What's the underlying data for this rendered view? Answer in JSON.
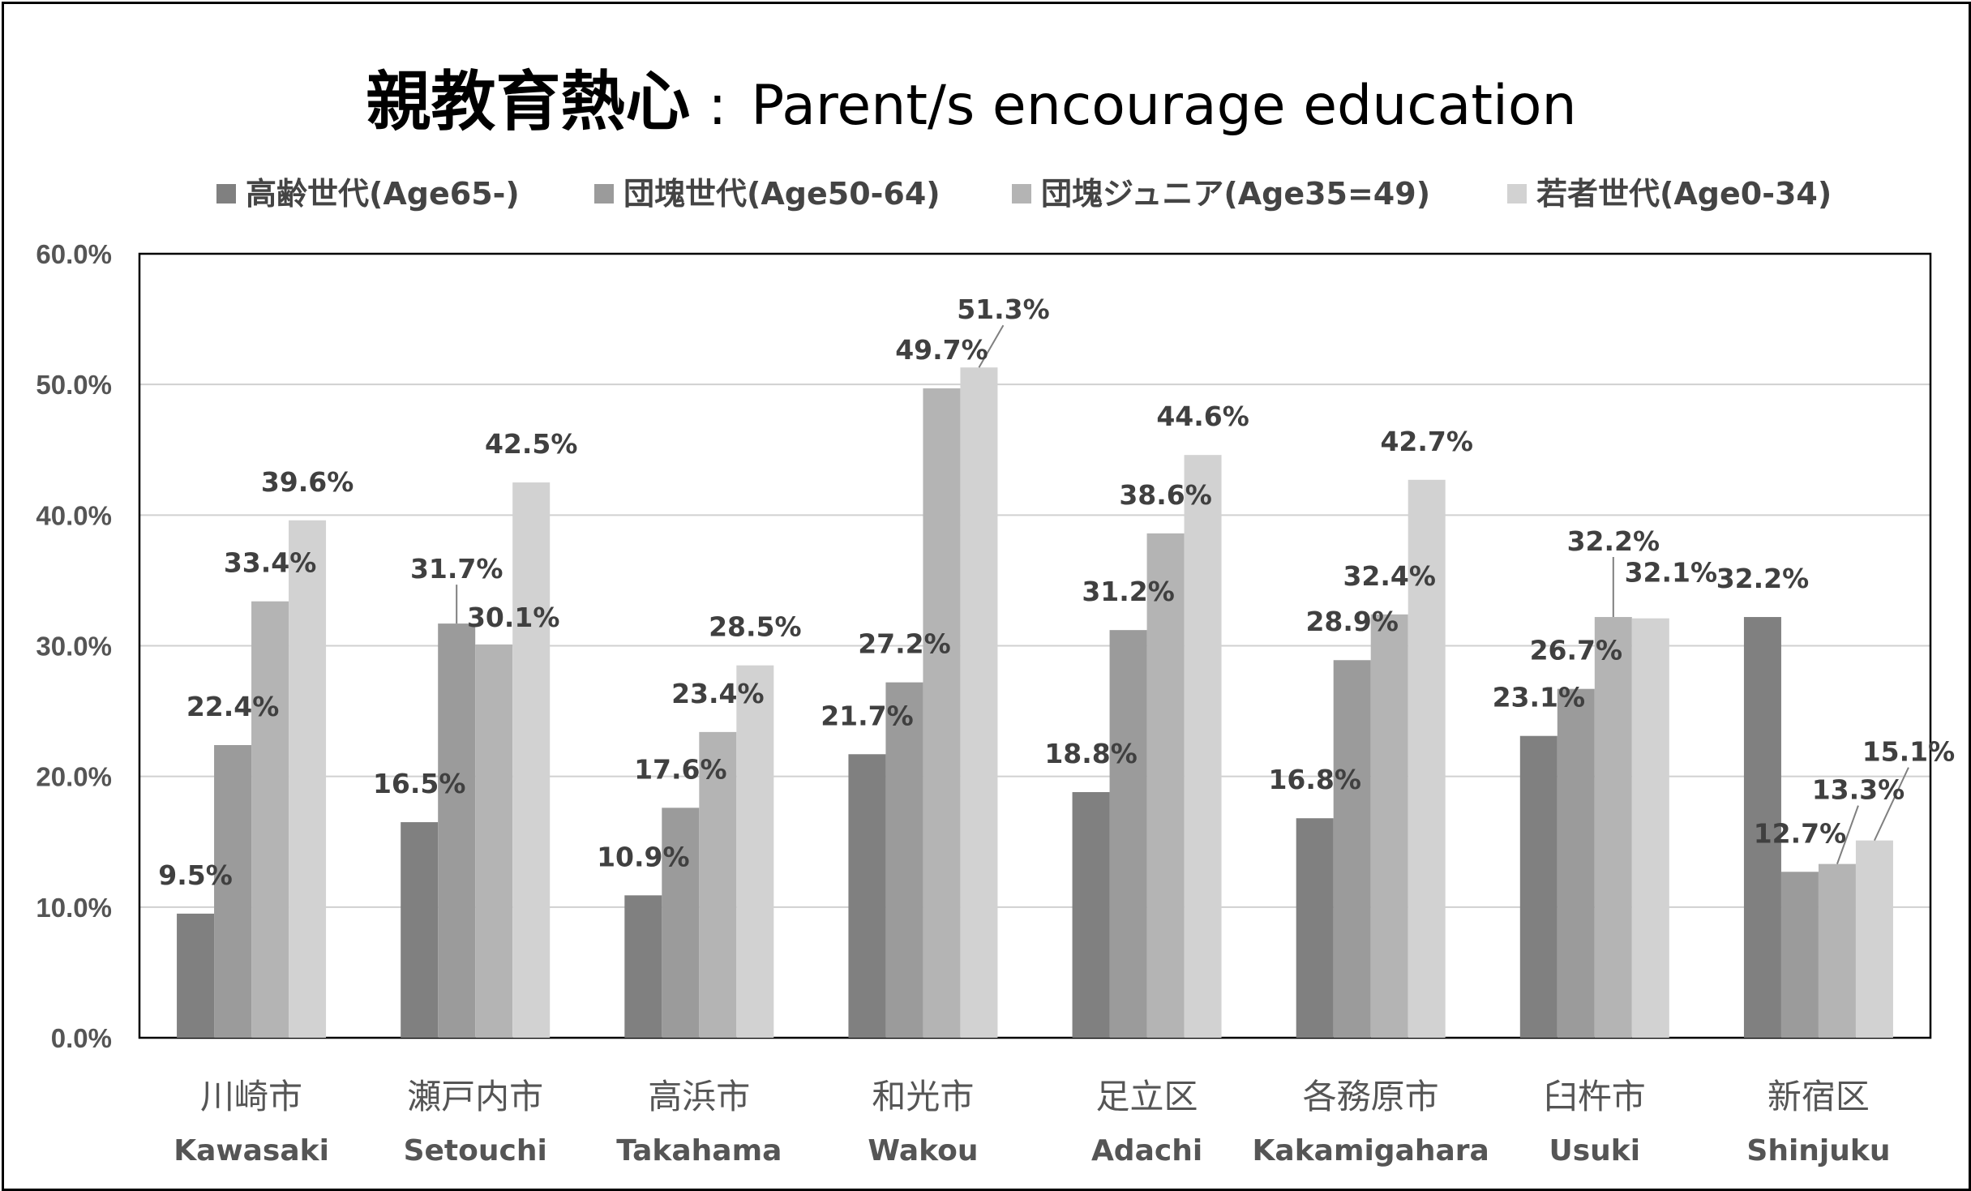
{
  "chart_data": {
    "type": "bar",
    "title_jp": "親教育熱心",
    "title_sep": ":",
    "title_en": "Parent/s encourage education",
    "ylim": [
      0,
      60
    ],
    "y_ticks": [
      "0.0%",
      "10.0%",
      "20.0%",
      "30.0%",
      "40.0%",
      "50.0%",
      "60.0%"
    ],
    "grid": true,
    "legend_position": "top",
    "categories": [
      {
        "jp": "川崎市",
        "en": "Kawasaki"
      },
      {
        "jp": "瀬戸内市",
        "en": "Setouchi"
      },
      {
        "jp": "高浜市",
        "en": "Takahama"
      },
      {
        "jp": "和光市",
        "en": "Wakou"
      },
      {
        "jp": "足立区",
        "en": "Adachi"
      },
      {
        "jp": "各務原市",
        "en": "Kakamigahara"
      },
      {
        "jp": "臼杵市",
        "en": "Usuki"
      },
      {
        "jp": "新宿区",
        "en": "Shinjuku"
      }
    ],
    "series": [
      {
        "name": "高齢世代(Age65-)",
        "color": "#808080",
        "values": [
          9.5,
          16.5,
          10.9,
          21.7,
          18.8,
          16.8,
          23.1,
          32.2
        ],
        "labels": [
          "9.5%",
          "16.5%",
          "10.9%",
          "21.7%",
          "18.8%",
          "16.8%",
          "23.1%",
          "32.2%"
        ]
      },
      {
        "name": "団塊世代(Age50-64)",
        "color": "#9b9b9b",
        "values": [
          22.4,
          31.7,
          17.6,
          27.2,
          31.2,
          28.9,
          26.7,
          12.7
        ],
        "labels": [
          "22.4%",
          "31.7%",
          "17.6%",
          "27.2%",
          "31.2%",
          "28.9%",
          "26.7%",
          "12.7%"
        ]
      },
      {
        "name": "団塊ジュニア(Age35=49)",
        "color": "#b4b4b4",
        "values": [
          33.4,
          30.1,
          23.4,
          49.7,
          38.6,
          32.4,
          32.2,
          13.3
        ],
        "labels": [
          "33.4%",
          "30.1%",
          "23.4%",
          "49.7%",
          "38.6%",
          "32.4%",
          "32.2%",
          "13.3%"
        ]
      },
      {
        "name": "若者世代(Age0-34)",
        "color": "#d2d2d2",
        "values": [
          39.6,
          42.5,
          28.5,
          51.3,
          44.6,
          42.7,
          32.1,
          15.1
        ],
        "labels": [
          "39.6%",
          "42.5%",
          "28.5%",
          "51.3%",
          "44.6%",
          "42.7%",
          "32.1%",
          "15.1%"
        ]
      }
    ]
  }
}
